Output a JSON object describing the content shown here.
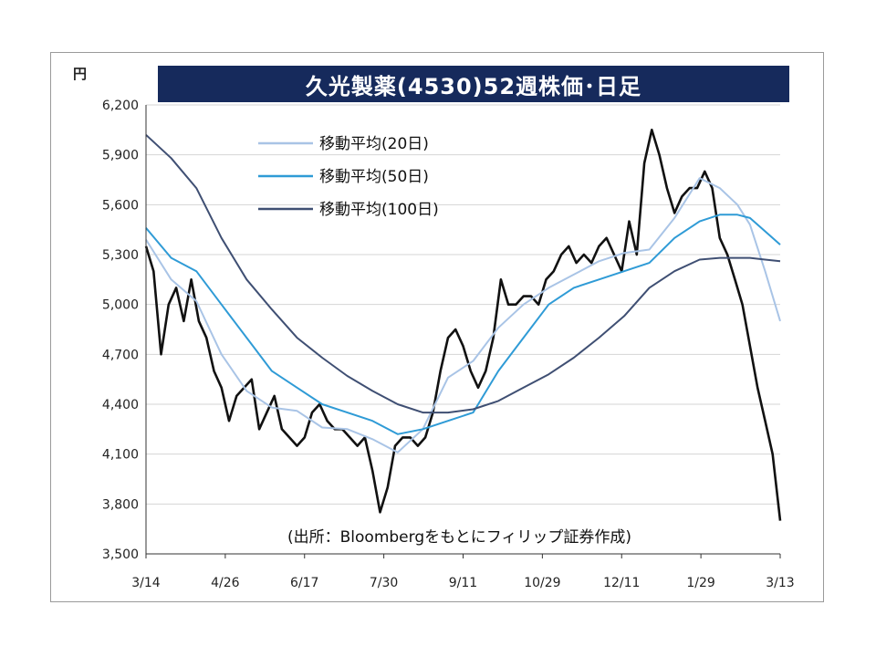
{
  "chart_data": {
    "type": "line",
    "title": "久光製薬(4530)52週株価･日足",
    "unit": "円",
    "source_note": "(出所：Bloombergをもとにフィリップ証券作成)",
    "ylim": [
      3500,
      6200
    ],
    "y_ticks": [
      "6,200",
      "5,900",
      "5,600",
      "5,300",
      "5,000",
      "4,700",
      "4,400",
      "4,100",
      "3,800",
      "3,500"
    ],
    "x_ticks": [
      "3/14",
      "4/26",
      "6/17",
      "7/30",
      "9/11",
      "10/29",
      "12/11",
      "1/29",
      "3/13"
    ],
    "grid": "horizontal",
    "series": [
      {
        "name": "",
        "kind": "price",
        "x": [
          0,
          3,
          6,
          9,
          12,
          15,
          18,
          21,
          24,
          27,
          30,
          33,
          36,
          39,
          42,
          45,
          48,
          51,
          54,
          57,
          60,
          63,
          66,
          69,
          72,
          75,
          78,
          81,
          84,
          87,
          90,
          93,
          96,
          99,
          102,
          105,
          108,
          111,
          114,
          117,
          120,
          123,
          126,
          129,
          132,
          135,
          138,
          141,
          144,
          147,
          150,
          153,
          156,
          159,
          162,
          165,
          168,
          171,
          174,
          177,
          180,
          183,
          186,
          189,
          192,
          195,
          198,
          201,
          204,
          207,
          210,
          213,
          216,
          219,
          222,
          225,
          228,
          231,
          234,
          237,
          240,
          243,
          246,
          249,
          252
        ],
        "y": [
          5350,
          5200,
          4700,
          5000,
          5100,
          4900,
          5150,
          4900,
          4800,
          4600,
          4500,
          4300,
          4450,
          4500,
          4550,
          4250,
          4350,
          4450,
          4250,
          4200,
          4150,
          4200,
          4350,
          4400,
          4300,
          4250,
          4250,
          4200,
          4150,
          4200,
          4000,
          3750,
          3900,
          4150,
          4200,
          4200,
          4150,
          4200,
          4350,
          4600,
          4800,
          4850,
          4750,
          4600,
          4500,
          4600,
          4800,
          5150,
          5000,
          5000,
          5050,
          5050,
          5000,
          5150,
          5200,
          5300,
          5350,
          5250,
          5300,
          5250,
          5350,
          5400,
          5300,
          5200,
          5500,
          5300,
          5850,
          6050,
          5900,
          5700,
          5550,
          5650,
          5700,
          5700,
          5800,
          5700,
          5400,
          5300,
          5150,
          5000,
          4750,
          4500,
          4300,
          4100,
          3700
        ]
      },
      {
        "name": "移動平均(20日)",
        "x": [
          0,
          10,
          20,
          30,
          40,
          50,
          60,
          70,
          80,
          90,
          100,
          110,
          120,
          130,
          140,
          150,
          160,
          170,
          180,
          190,
          200,
          210,
          220,
          228,
          235,
          240,
          246,
          252
        ],
        "y": [
          5390,
          5150,
          5020,
          4700,
          4480,
          4380,
          4360,
          4260,
          4250,
          4190,
          4110,
          4250,
          4560,
          4660,
          4860,
          5000,
          5100,
          5180,
          5260,
          5310,
          5330,
          5520,
          5760,
          5700,
          5600,
          5480,
          5200,
          4900
        ]
      },
      {
        "name": "移動平均(50日)",
        "x": [
          0,
          10,
          20,
          30,
          40,
          50,
          60,
          70,
          80,
          90,
          100,
          110,
          120,
          130,
          140,
          150,
          160,
          170,
          180,
          190,
          200,
          210,
          220,
          228,
          235,
          240,
          246,
          252
        ],
        "y": [
          5460,
          5280,
          5200,
          5000,
          4800,
          4600,
          4500,
          4400,
          4350,
          4300,
          4220,
          4250,
          4300,
          4350,
          4600,
          4800,
          5000,
          5100,
          5150,
          5200,
          5250,
          5400,
          5500,
          5540,
          5540,
          5520,
          5440,
          5360
        ]
      },
      {
        "name": "移動平均(100日)",
        "x": [
          0,
          10,
          20,
          30,
          40,
          50,
          60,
          70,
          80,
          90,
          100,
          110,
          120,
          130,
          140,
          150,
          160,
          170,
          180,
          190,
          200,
          210,
          220,
          228,
          235,
          240,
          246,
          252
        ],
        "y": [
          6020,
          5880,
          5700,
          5400,
          5150,
          4970,
          4800,
          4680,
          4570,
          4480,
          4400,
          4350,
          4350,
          4370,
          4420,
          4500,
          4580,
          4680,
          4800,
          4930,
          5100,
          5200,
          5270,
          5280,
          5280,
          5280,
          5270,
          5260
        ]
      }
    ]
  }
}
